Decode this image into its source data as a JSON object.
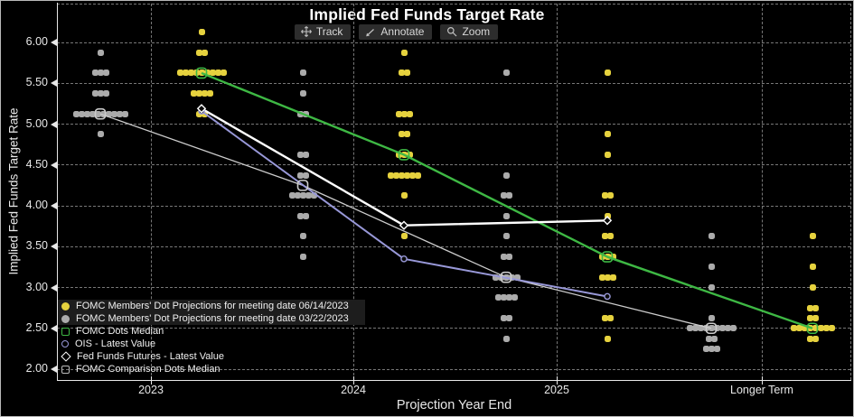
{
  "header": {
    "title": "Implied Fed Funds Target Rate",
    "toolbar": {
      "items": [
        {
          "label": "Track",
          "icon": "track-icon"
        },
        {
          "label": "Annotate",
          "icon": "annotate-icon"
        },
        {
          "label": "Zoom",
          "icon": "zoom-icon"
        }
      ]
    }
  },
  "axes": {
    "y": {
      "label": "Implied Fed Funds Target Rate",
      "ticks": [
        "6.00",
        "5.50",
        "5.00",
        "4.50",
        "4.00",
        "3.50",
        "3.00",
        "2.50",
        "2.00"
      ]
    },
    "x": {
      "label": "Projection Year End",
      "ticks": [
        "2023",
        "2024",
        "2025",
        "Longer Term"
      ]
    }
  },
  "legend": {
    "items": [
      {
        "marker": "dot-filled",
        "color": "#E6D23E",
        "label": "FOMC Members' Dot Projections for meeting date 06/14/2023"
      },
      {
        "marker": "dot-filled",
        "color": "#ABABAB",
        "label": "FOMC Members' Dot Projections for meeting date 03/22/2023"
      },
      {
        "marker": "square-open",
        "color": "#3EB844",
        "label": "FOMC Dots Median"
      },
      {
        "marker": "circle-open",
        "color": "#9898D8",
        "label": "OIS - Latest Value"
      },
      {
        "marker": "diamond-open",
        "color": "#FFFFFF",
        "label": "Fed Funds Futures - Latest Value"
      },
      {
        "marker": "square-open",
        "color": "#BBBBBB",
        "label": "FOMC Comparison Dots Median"
      }
    ]
  },
  "colors": {
    "background": "#000000",
    "axis": "#e8e8e8",
    "gridline": "#777777",
    "dots_june": "#E6D23E",
    "dots_march": "#ABABAB",
    "fomc_median": "#3EB844",
    "ois": "#9898D8",
    "fed_funds_futures": "#FFFFFF",
    "comparison_median": "#CCCCCC"
  },
  "chart_data": {
    "type": "scatter",
    "title": "Implied Fed Funds Target Rate",
    "xlabel": "Projection Year End",
    "ylabel": "Implied Fed Funds Target Rate",
    "ylim": [
      2.0,
      6.5
    ],
    "yticks": [
      6.0,
      5.5,
      5.0,
      4.5,
      4.0,
      3.5,
      3.0,
      2.5,
      2.0
    ],
    "grid": "dashed",
    "legend_position": "bottom-left",
    "categories": [
      "2023",
      "2024",
      "2025",
      "Longer Term"
    ],
    "series": [
      {
        "name": "FOMC Members' Dot Projections for meeting date 06/14/2023",
        "type": "dots",
        "color": "#E6D23E",
        "side": "right",
        "points": {
          "2023": [
            [
              6.125,
              1
            ],
            [
              5.875,
              2
            ],
            [
              5.625,
              9
            ],
            [
              5.375,
              4
            ],
            [
              5.125,
              2
            ]
          ],
          "2024": [
            [
              5.875,
              1
            ],
            [
              5.625,
              2
            ],
            [
              5.125,
              3
            ],
            [
              4.875,
              2
            ],
            [
              4.625,
              3
            ],
            [
              4.375,
              6
            ],
            [
              4.125,
              1
            ],
            [
              3.625,
              1
            ]
          ],
          "2025": [
            [
              5.625,
              1
            ],
            [
              4.875,
              1
            ],
            [
              4.625,
              1
            ],
            [
              4.125,
              2
            ],
            [
              3.875,
              1
            ],
            [
              3.625,
              2
            ],
            [
              3.375,
              3
            ],
            [
              3.125,
              3
            ],
            [
              2.625,
              2
            ],
            [
              2.375,
              1
            ]
          ],
          "Longer Term": [
            [
              3.625,
              1
            ],
            [
              3.25,
              1
            ],
            [
              3.0,
              1
            ],
            [
              2.75,
              2
            ],
            [
              2.625,
              2
            ],
            [
              2.5,
              8
            ],
            [
              2.375,
              2
            ]
          ]
        }
      },
      {
        "name": "FOMC Members' Dot Projections for meeting date 03/22/2023",
        "type": "dots",
        "color": "#ABABAB",
        "side": "left",
        "points": {
          "2023": [
            [
              5.875,
              1
            ],
            [
              5.625,
              3
            ],
            [
              5.375,
              3
            ],
            [
              5.125,
              10
            ],
            [
              4.875,
              1
            ]
          ],
          "2024": [
            [
              5.625,
              1
            ],
            [
              5.375,
              1
            ],
            [
              5.125,
              2
            ],
            [
              4.625,
              2
            ],
            [
              4.375,
              2
            ],
            [
              4.125,
              5
            ],
            [
              3.875,
              2
            ],
            [
              3.625,
              1
            ],
            [
              3.375,
              1
            ]
          ],
          "2025": [
            [
              5.625,
              1
            ],
            [
              4.375,
              1
            ],
            [
              4.125,
              2
            ],
            [
              3.875,
              1
            ],
            [
              3.625,
              1
            ],
            [
              3.375,
              2
            ],
            [
              3.125,
              5
            ],
            [
              2.875,
              4
            ],
            [
              2.625,
              2
            ],
            [
              2.375,
              1
            ]
          ],
          "Longer Term": [
            [
              3.625,
              1
            ],
            [
              3.25,
              1
            ],
            [
              3.0,
              1
            ],
            [
              2.625,
              1
            ],
            [
              2.5,
              9
            ],
            [
              2.375,
              2
            ],
            [
              2.25,
              3
            ]
          ]
        }
      },
      {
        "name": "FOMC Dots Median",
        "type": "line",
        "color": "#3EB844",
        "side": "right",
        "marker": "ring",
        "line_width": 2.4,
        "values": [
          5.625,
          4.625,
          3.375,
          2.5
        ]
      },
      {
        "name": "OIS - Latest Value",
        "type": "line",
        "color": "#9898D8",
        "side": "right",
        "marker": "circle-open",
        "line_width": 2,
        "values": [
          5.16,
          3.35,
          2.89,
          null
        ]
      },
      {
        "name": "Fed Funds Futures - Latest Value",
        "type": "line",
        "color": "#FFFFFF",
        "side": "right",
        "marker": "diamond-open",
        "line_width": 2.4,
        "values": [
          5.19,
          3.76,
          3.82,
          null
        ]
      },
      {
        "name": "FOMC Comparison Dots Median",
        "type": "line",
        "color": "#CCCCCC",
        "side": "left",
        "marker": "ring",
        "line_width": 1.3,
        "values": [
          5.125,
          4.25,
          3.125,
          2.5
        ]
      }
    ]
  }
}
